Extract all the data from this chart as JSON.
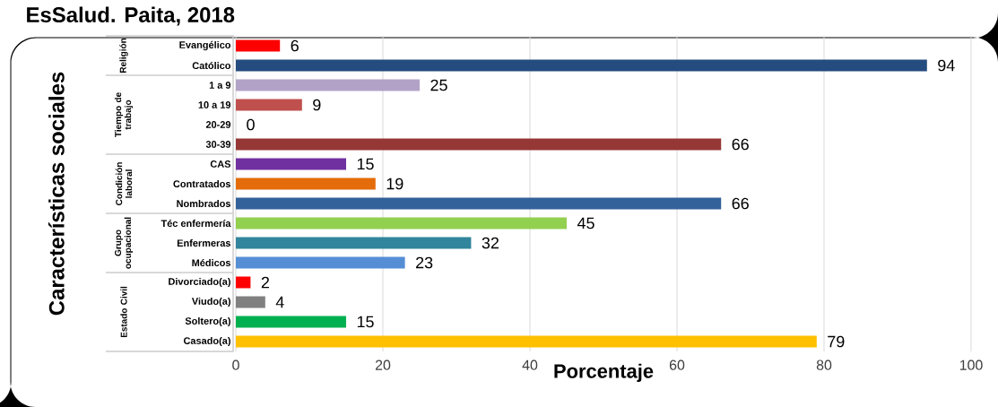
{
  "chart_data": {
    "type": "bar",
    "orientation": "horizontal",
    "title": "EsSalud. Paita, 2018",
    "xlabel": "Porcentaje",
    "ylabel": "Características sociales",
    "categories": [
      "Evangélico",
      "Católico",
      "1 a 9",
      "10 a 19",
      "20-29",
      "30-39",
      "CAS",
      "Contratados",
      "Nombrados",
      "Téc enfermería",
      "Enfermeras",
      "Médicos",
      "Divorciado(a)",
      "Viudo(a)",
      "Soltero(a)",
      "Casado(a)"
    ],
    "values": [
      6,
      94,
      25,
      9,
      0,
      66,
      15,
      19,
      66,
      45,
      32,
      23,
      2,
      4,
      15,
      79
    ],
    "colors": [
      "#ff0000",
      "#254c7f",
      "#b3a2c7",
      "#c0504d",
      "#953735",
      "#953735",
      "#7030a0",
      "#e46c0a",
      "#33619a",
      "#92d050",
      "#31859c",
      "#558ed5",
      "#ff0000",
      "#808080",
      "#00b050",
      "#ffc000"
    ],
    "annotations": [
      "Religión",
      "Tiempo de trabajo",
      "Condición laboral",
      "Grupo ocupacional",
      "Estado Civil"
    ],
    "xlim": [
      0,
      100
    ],
    "xticks": [
      0,
      20,
      40,
      60,
      80,
      100
    ],
    "grid": "x",
    "data_labels": true
  }
}
